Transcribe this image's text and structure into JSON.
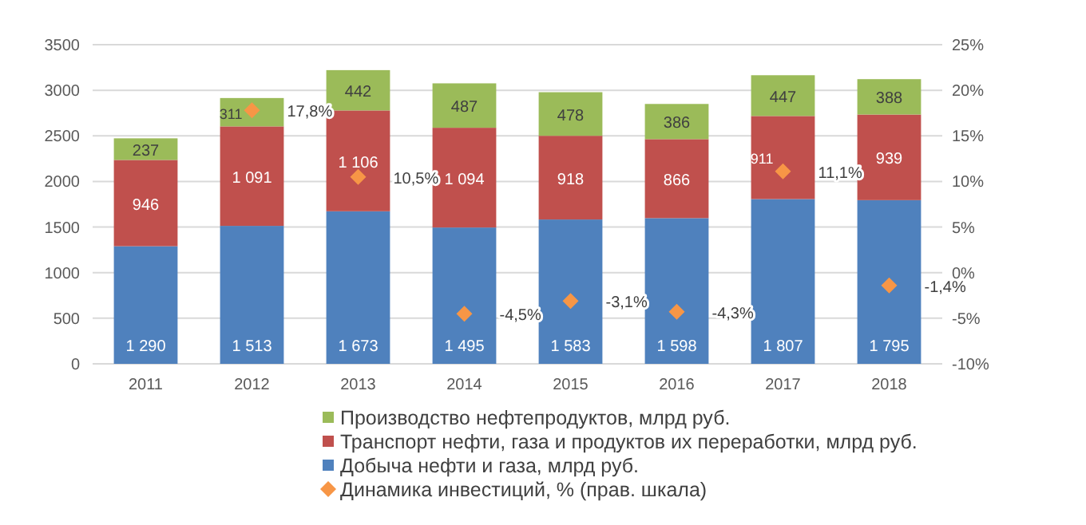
{
  "chart_data": {
    "type": "bar",
    "stacked": true,
    "categories": [
      "2011",
      "2012",
      "2013",
      "2014",
      "2015",
      "2016",
      "2017",
      "2018"
    ],
    "series": [
      {
        "name": "Добыча нефти и газа, млрд руб.",
        "color": "#4f81bd",
        "values": [
          1290,
          1513,
          1673,
          1495,
          1583,
          1598,
          1807,
          1795
        ],
        "value_labels": [
          "1 290",
          "1 513",
          "1 673",
          "1 495",
          "1 583",
          "1 598",
          "1 807",
          "1 795"
        ]
      },
      {
        "name": "Транспорт нефти, газа и продуктов их переработки, млрд руб.",
        "color": "#c0504d",
        "values": [
          946,
          1091,
          1106,
          1094,
          918,
          866,
          911,
          939
        ],
        "value_labels": [
          "946",
          "1 091",
          "1 106",
          "1 094",
          "918",
          "866",
          "911",
          "939"
        ]
      },
      {
        "name": "Производство нефтепродуктов, млрд руб.",
        "color": "#9bbb59",
        "values": [
          237,
          311,
          442,
          487,
          478,
          386,
          447,
          388
        ],
        "value_labels": [
          "237",
          "311",
          "442",
          "487",
          "478",
          "386",
          "447",
          "388"
        ]
      },
      {
        "name": "Динамика инвестиций, % (прав. шкала)",
        "type": "scatter",
        "axis": "y2",
        "color": "#f79646",
        "marker": "diamond",
        "values": [
          null,
          17.8,
          10.5,
          -4.5,
          -3.1,
          -4.3,
          11.1,
          -1.4
        ],
        "value_labels": [
          null,
          "17,8%",
          "10,5%",
          "-4,5%",
          "-3,1%",
          "-4,3%",
          "11,1%",
          "-1,4%"
        ]
      }
    ],
    "ylim": [
      0,
      3500
    ],
    "yticks": [
      0,
      500,
      1000,
      1500,
      2000,
      2500,
      3000,
      3500
    ],
    "y2lim": [
      -10,
      25
    ],
    "y2ticks": [
      {
        "value": -10,
        "label": "-10%"
      },
      {
        "value": -5,
        "label": "-5%"
      },
      {
        "value": 0,
        "label": "0%"
      },
      {
        "value": 5,
        "label": "5%"
      },
      {
        "value": 10,
        "label": "10%"
      },
      {
        "value": 15,
        "label": "15%"
      },
      {
        "value": 20,
        "label": "20%"
      },
      {
        "value": 25,
        "label": "25%"
      }
    ],
    "grid": "y",
    "legend": "bottom"
  }
}
